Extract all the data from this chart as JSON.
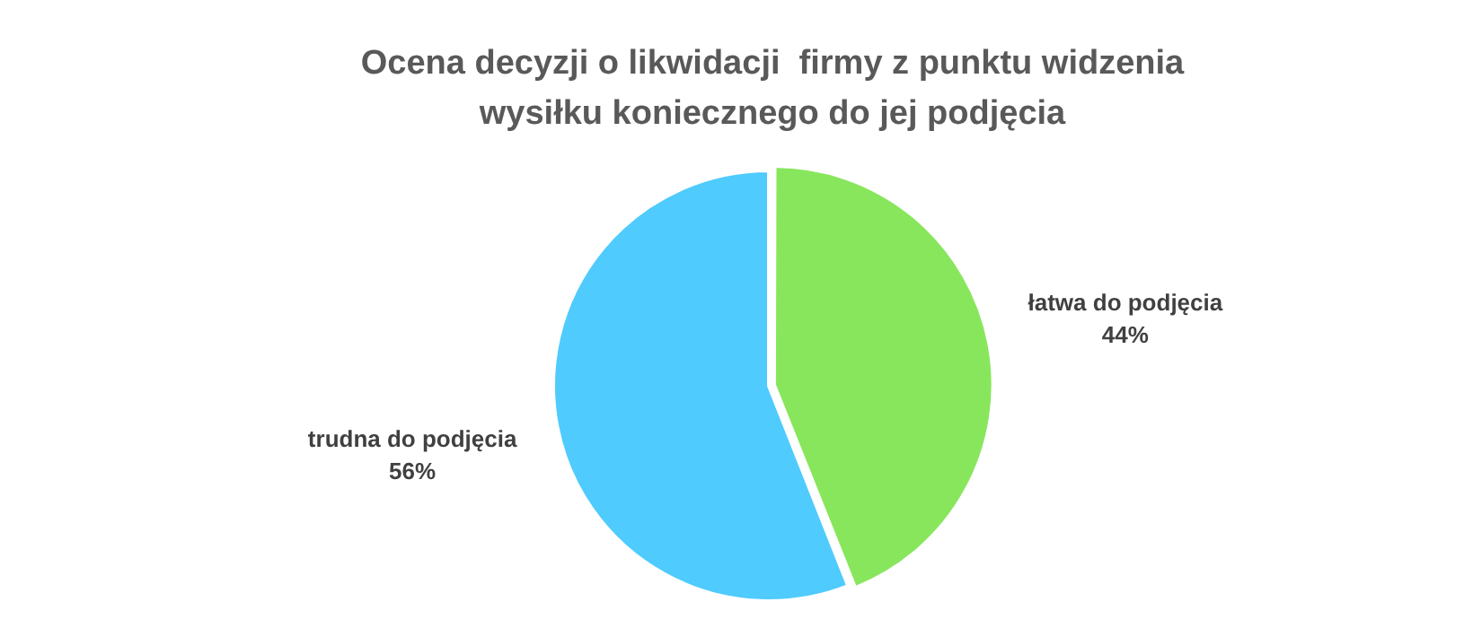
{
  "chart_data": {
    "type": "pie",
    "title": "Ocena decyzji o likwidacji  firmy z punktu widzenia wysiłku koniecznego do jej podjęcia",
    "categories": [
      "łatwa do podjęcia",
      "trudna do podjęcia"
    ],
    "values": [
      44,
      56
    ],
    "colors": [
      "#88e65c",
      "#4fcbfd"
    ],
    "value_labels": [
      "44%",
      "56%"
    ],
    "legend": false
  }
}
